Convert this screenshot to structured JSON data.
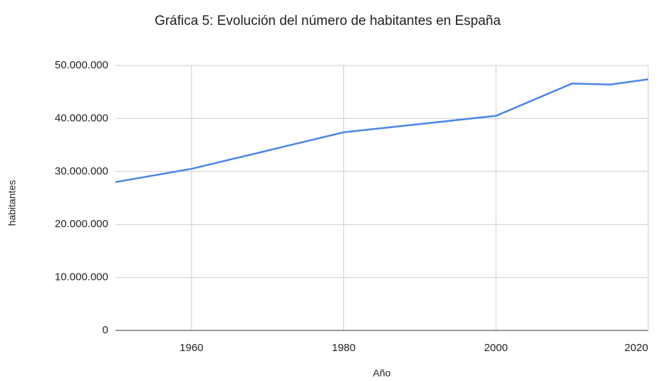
{
  "chart_data": {
    "type": "line",
    "title": "Gráfica 5: Evolución del número de habitantes en España",
    "x_label": "Año",
    "y_label": "habitantes",
    "x": [
      1950,
      1960,
      1980,
      2000,
      2010,
      2015,
      2020
    ],
    "series": [
      {
        "name": "habitantes",
        "color": "#4a86e8",
        "values": [
          28000000,
          30500000,
          37400000,
          40500000,
          46600000,
          46400000,
          47400000
        ]
      }
    ],
    "xlim": [
      1950,
      2020
    ],
    "xticks": [
      1960,
      1980,
      2000,
      2020
    ],
    "ylim": [
      0,
      50000000
    ],
    "yticks": [
      0,
      {
        "value": 10000000,
        "label": "10.000.000"
      },
      {
        "value": 20000000,
        "label": "20.000.000"
      },
      {
        "value": 30000000,
        "label": "30.000.000"
      },
      {
        "value": 40000000,
        "label": "40.000.000"
      },
      {
        "value": 50000000,
        "label": "50.000.000"
      }
    ],
    "grid": true
  }
}
